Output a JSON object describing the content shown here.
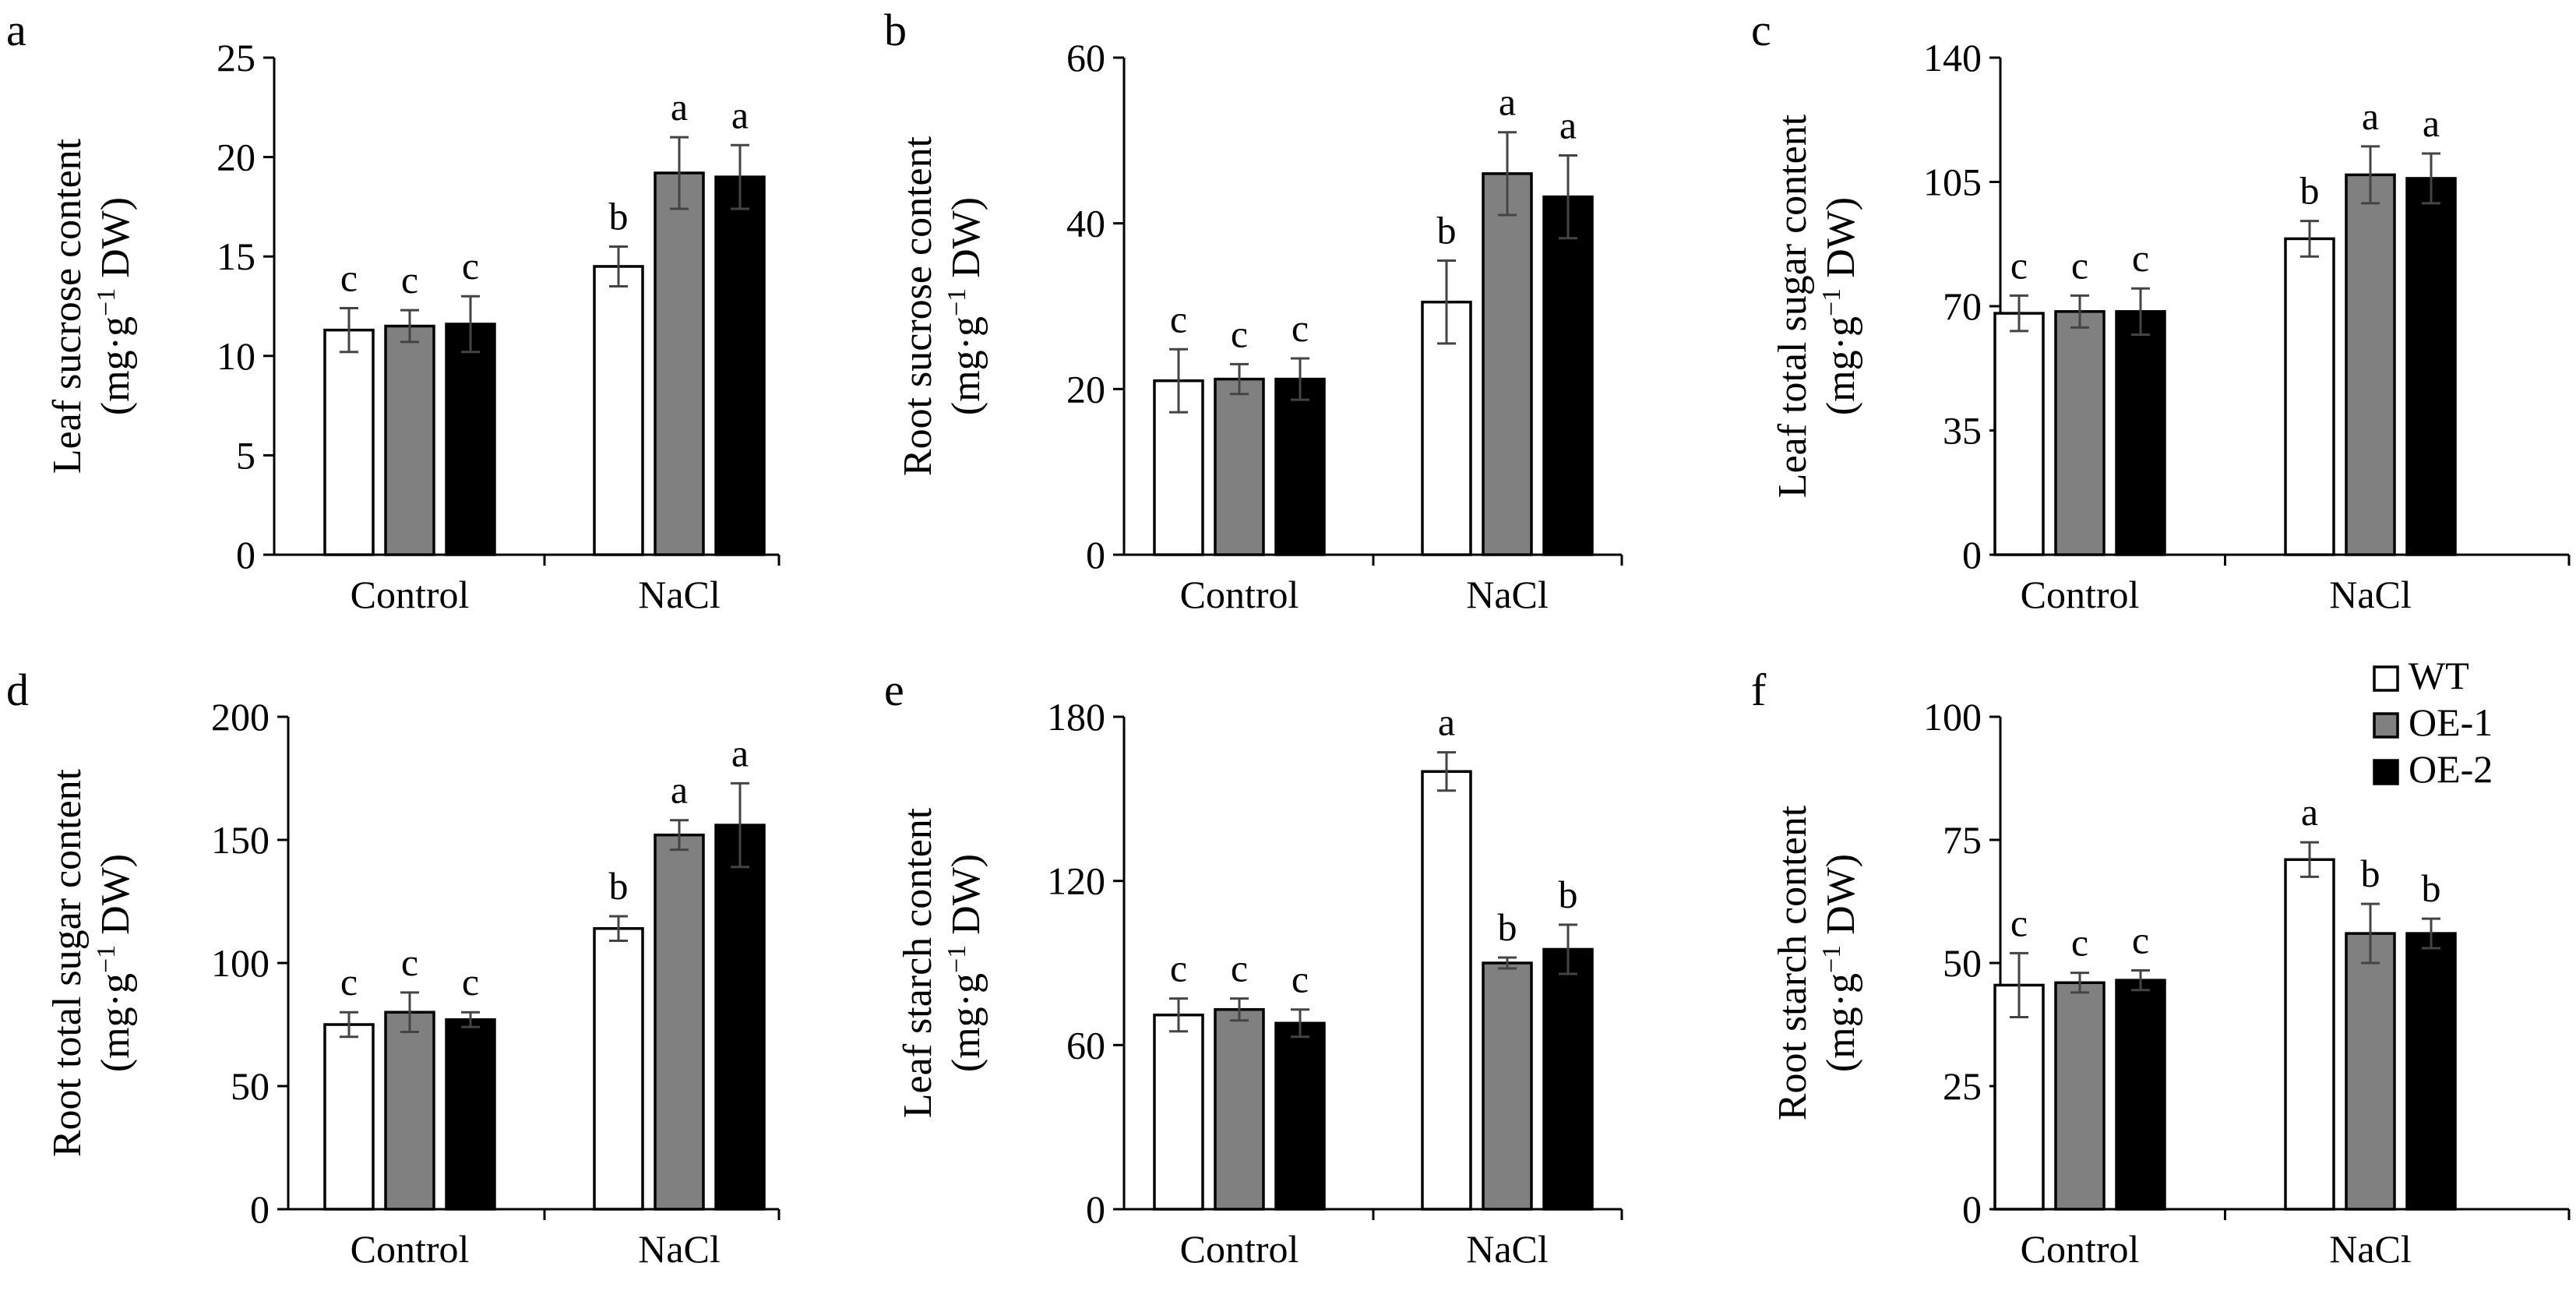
{
  "legend": [
    {
      "label": "WT",
      "color": "#ffffff"
    },
    {
      "label": "OE-1",
      "color": "#808080"
    },
    {
      "label": "OE-2",
      "color": "#000000"
    }
  ],
  "chart_data": [
    {
      "panel": "a",
      "type": "bar",
      "ylabel_line1": "Leaf sucrose content",
      "ylabel_line2": {
        "pre": "(mg·g",
        "sup": "−1",
        "post": " DW)"
      },
      "categories": [
        "Control",
        "NaCl"
      ],
      "ylim": [
        0,
        25
      ],
      "yticks": [
        0,
        5,
        10,
        15,
        20,
        25
      ],
      "series": [
        {
          "name": "WT",
          "values": [
            11.3,
            14.5
          ],
          "errors": [
            1.1,
            1.0
          ],
          "letters": [
            "c",
            "b"
          ]
        },
        {
          "name": "OE-1",
          "values": [
            11.5,
            19.2
          ],
          "errors": [
            0.8,
            1.8
          ],
          "letters": [
            "c",
            "a"
          ]
        },
        {
          "name": "OE-2",
          "values": [
            11.6,
            19.0
          ],
          "errors": [
            1.4,
            1.6
          ],
          "letters": [
            "c",
            "a"
          ]
        }
      ]
    },
    {
      "panel": "b",
      "type": "bar",
      "ylabel_line1": "Root sucrose content",
      "ylabel_line2": {
        "pre": "(mg·g",
        "sup": "−1",
        "post": " DW)"
      },
      "categories": [
        "Control",
        "NaCl"
      ],
      "ylim": [
        0,
        60
      ],
      "yticks": [
        0,
        20,
        40,
        60
      ],
      "series": [
        {
          "name": "WT",
          "values": [
            21.0,
            30.5
          ],
          "errors": [
            3.8,
            5.0
          ],
          "letters": [
            "c",
            "b"
          ]
        },
        {
          "name": "OE-1",
          "values": [
            21.2,
            46.0
          ],
          "errors": [
            1.8,
            5.0
          ],
          "letters": [
            "c",
            "a"
          ]
        },
        {
          "name": "OE-2",
          "values": [
            21.2,
            43.2
          ],
          "errors": [
            2.5,
            5.0
          ],
          "letters": [
            "c",
            "a"
          ]
        }
      ]
    },
    {
      "panel": "c",
      "type": "bar",
      "ylabel_line1": "Leaf total sugar content",
      "ylabel_line2": {
        "pre": "(mg·g",
        "sup": "−1",
        "post": " DW)"
      },
      "categories": [
        "Control",
        "NaCl"
      ],
      "ylim": [
        0,
        140
      ],
      "yticks": [
        0,
        35,
        70,
        105,
        140
      ],
      "series": [
        {
          "name": "WT",
          "values": [
            68.0,
            89.0
          ],
          "errors": [
            5.0,
            5.0
          ],
          "letters": [
            "c",
            "b"
          ]
        },
        {
          "name": "OE-1",
          "values": [
            68.5,
            107.0
          ],
          "errors": [
            4.5,
            8.0
          ],
          "letters": [
            "c",
            "a"
          ]
        },
        {
          "name": "OE-2",
          "values": [
            68.5,
            106.0
          ],
          "errors": [
            6.5,
            7.0
          ],
          "letters": [
            "c",
            "a"
          ]
        }
      ]
    },
    {
      "panel": "d",
      "type": "bar",
      "ylabel_line1": "Root total sugar content",
      "ylabel_line2": {
        "pre": "(mg·g",
        "sup": "−1",
        "post": " DW)"
      },
      "categories": [
        "Control",
        "NaCl"
      ],
      "ylim": [
        0,
        200
      ],
      "yticks": [
        0,
        50,
        100,
        150,
        200
      ],
      "series": [
        {
          "name": "WT",
          "values": [
            75.0,
            114.0
          ],
          "errors": [
            5.0,
            5.0
          ],
          "letters": [
            "c",
            "b"
          ]
        },
        {
          "name": "OE-1",
          "values": [
            80.0,
            152.0
          ],
          "errors": [
            8.0,
            6.0
          ],
          "letters": [
            "c",
            "a"
          ]
        },
        {
          "name": "OE-2",
          "values": [
            77.0,
            156.0
          ],
          "errors": [
            3.0,
            17.0
          ],
          "letters": [
            "c",
            "a"
          ]
        }
      ]
    },
    {
      "panel": "e",
      "type": "bar",
      "ylabel_line1": "Leaf starch content",
      "ylabel_line2": {
        "pre": "(mg·g",
        "sup": "−1",
        "post": " DW)"
      },
      "categories": [
        "Control",
        "NaCl"
      ],
      "ylim": [
        0,
        180
      ],
      "yticks": [
        0,
        60,
        120,
        180
      ],
      "series": [
        {
          "name": "WT",
          "values": [
            71.0,
            160.0
          ],
          "errors": [
            6.0,
            7.0
          ],
          "letters": [
            "c",
            "a"
          ]
        },
        {
          "name": "OE-1",
          "values": [
            73.0,
            90.0
          ],
          "errors": [
            4.0,
            2.0
          ],
          "letters": [
            "c",
            "b"
          ]
        },
        {
          "name": "OE-2",
          "values": [
            68.0,
            95.0
          ],
          "errors": [
            5.0,
            9.0
          ],
          "letters": [
            "c",
            "b"
          ]
        }
      ]
    },
    {
      "panel": "f",
      "type": "bar",
      "ylabel_line1": "Root starch content",
      "ylabel_line2": {
        "pre": "(mg·g",
        "sup": "−1",
        "post": " DW)"
      },
      "categories": [
        "Control",
        "NaCl"
      ],
      "ylim": [
        0,
        100
      ],
      "yticks": [
        0,
        25,
        50,
        75,
        100
      ],
      "legend_position": "top-right",
      "series": [
        {
          "name": "WT",
          "values": [
            45.5,
            71.0
          ],
          "errors": [
            6.5,
            3.5
          ],
          "letters": [
            "c",
            "a"
          ]
        },
        {
          "name": "OE-1",
          "values": [
            46.0,
            56.0
          ],
          "errors": [
            2.0,
            6.0
          ],
          "letters": [
            "c",
            "b"
          ]
        },
        {
          "name": "OE-2",
          "values": [
            46.5,
            56.0
          ],
          "errors": [
            2.0,
            3.0
          ],
          "letters": [
            "c",
            "b"
          ]
        }
      ]
    }
  ]
}
